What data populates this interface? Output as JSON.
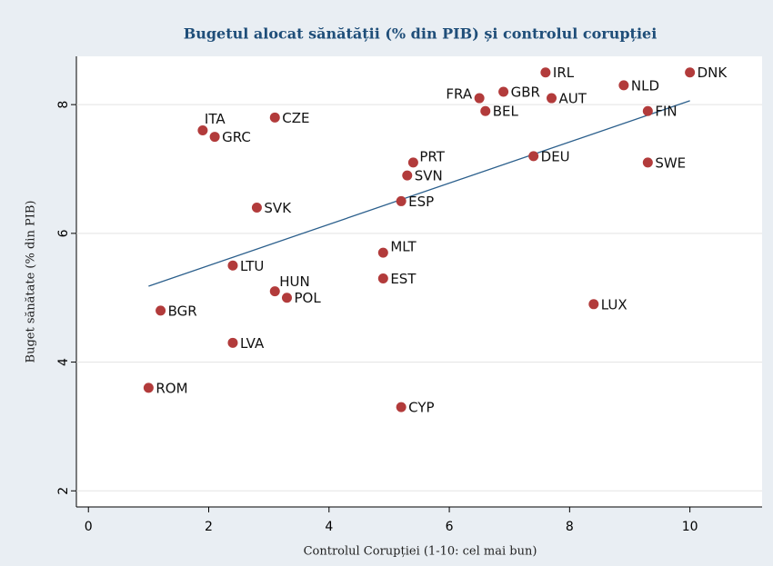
{
  "chart_data": {
    "type": "scatter",
    "title": "Bugetul alocat sănătății (% din PIB) și controlul corupției",
    "x_label": "Controlul Corupției (1-10: cel mai bun)",
    "y_label": "Buget sănătate (% din PIB)",
    "labels": [
      "ROM",
      "BGR",
      "LVA",
      "LTU",
      "HUN",
      "POL",
      "SVK",
      "ITA",
      "GRC",
      "CZE",
      "CYP",
      "EST",
      "MLT",
      "ESP",
      "SVN",
      "PRT",
      "FRA",
      "BEL",
      "GBR",
      "IRL",
      "AUT",
      "DEU",
      "LUX",
      "NLD",
      "FIN",
      "SWE",
      "DNK"
    ],
    "x": [
      1.0,
      1.2,
      2.4,
      2.4,
      3.1,
      3.3,
      2.8,
      1.9,
      2.1,
      3.1,
      5.2,
      4.9,
      4.9,
      5.2,
      5.3,
      5.4,
      6.5,
      6.6,
      6.9,
      7.6,
      7.7,
      7.4,
      8.4,
      8.9,
      9.3,
      9.3,
      10.0
    ],
    "values": [
      3.6,
      4.8,
      4.3,
      5.5,
      5.1,
      5.0,
      6.4,
      7.6,
      7.5,
      7.8,
      3.3,
      5.3,
      5.7,
      6.5,
      6.9,
      7.1,
      8.1,
      7.9,
      8.2,
      8.5,
      8.1,
      7.2,
      4.9,
      8.3,
      7.9,
      7.1,
      8.5
    ],
    "color": "#b23b3b",
    "fit_line": {
      "x": [
        1.0,
        10.0
      ],
      "y": [
        5.18,
        8.06
      ],
      "color": "#2b5f8c"
    },
    "xlim": [
      -0.2,
      11.2
    ],
    "ylim": [
      1.75,
      8.75
    ],
    "xticks": [
      0,
      2,
      4,
      6,
      8,
      10
    ],
    "yticks": [
      2,
      4,
      6,
      8
    ],
    "grid": true
  }
}
